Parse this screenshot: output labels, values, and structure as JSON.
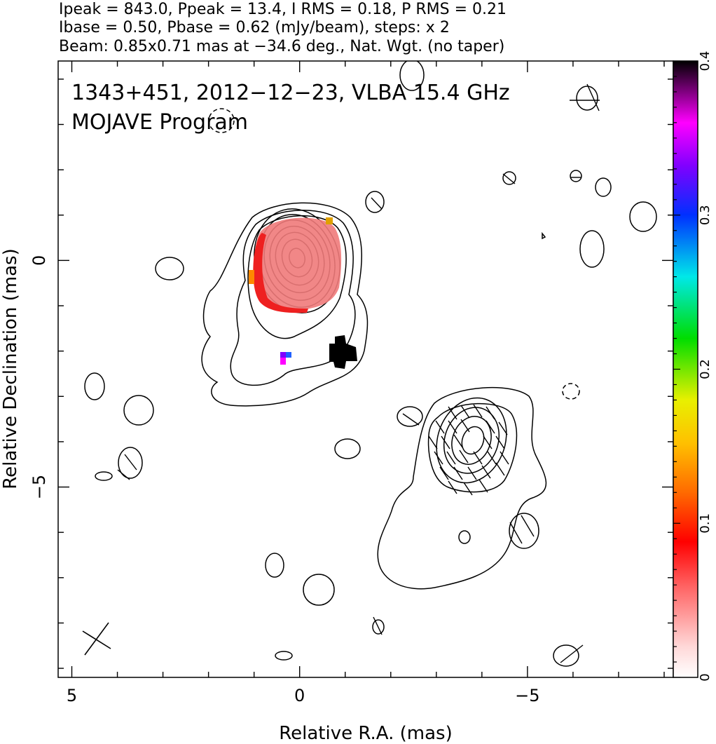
{
  "header": {
    "line1": "Ipeak = 843.0, Ppeak = 13.4, I RMS = 0.18, P RMS = 0.21",
    "line2": "Ibase = 0.50, Pbase = 0.62 (mJy/beam), steps: x 2",
    "line3": "Beam: 0.85x0.71 mas at −34.6 deg., Nat. Wgt. (no taper)"
  },
  "chart_data": {
    "type": "heatmap",
    "title": "1343+451, 2012−12−23, VLBA 15.4 GHz",
    "subtitle": "MOJAVE Program",
    "xlabel": "Relative R.A. (mas)",
    "ylabel": "Relative Declination (mas)",
    "xlim": [
      5.3,
      -8.2
    ],
    "ylim": [
      -9.2,
      4.4
    ],
    "x_ticks": [
      {
        "value": 5,
        "label": "5"
      },
      {
        "value": 0,
        "label": "0"
      },
      {
        "value": -5,
        "label": "−5"
      }
    ],
    "y_ticks": [
      {
        "value": 0,
        "label": "0"
      },
      {
        "value": -5,
        "label": "−5"
      }
    ],
    "colorbar": {
      "min": 0,
      "max": 0.4,
      "ticks": [
        {
          "value": 0,
          "label": "0"
        },
        {
          "value": 0.1,
          "label": "0.1"
        },
        {
          "value": 0.2,
          "label": "0.2"
        },
        {
          "value": 0.3,
          "label": "0.3"
        },
        {
          "value": 0.4,
          "label": "0.4"
        }
      ]
    },
    "beam": {
      "major_mas": 0.85,
      "minor_mas": 0.71,
      "pa_deg": -34.6
    },
    "components": [
      {
        "name": "core",
        "ra": 0.0,
        "dec": 0.0,
        "contour_levels": 10
      },
      {
        "name": "secondary",
        "ra": -4.0,
        "dec": -4.0,
        "contour_levels": 6
      }
    ],
    "colors": {
      "polarization_core": "#f07a7a",
      "blank_pixel": "#000000"
    }
  }
}
